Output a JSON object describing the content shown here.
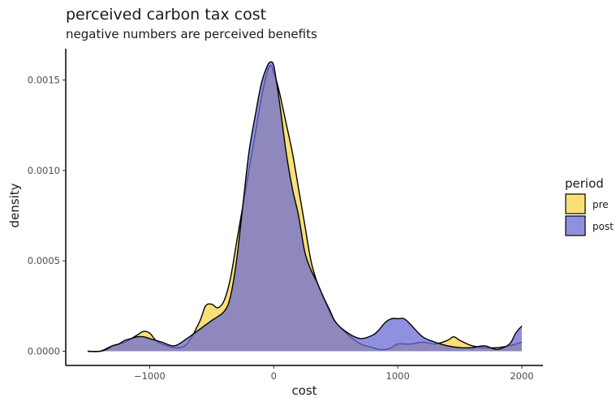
{
  "chart_data": {
    "type": "area",
    "title": "perceived carbon tax cost",
    "subtitle": "negative numbers are perceived benefits",
    "xlabel": "cost",
    "ylabel": "density",
    "xlim": [
      -1500,
      2000
    ],
    "ylim": [
      0,
      0.0016
    ],
    "x_ticks": [
      -1000,
      0,
      1000,
      2000
    ],
    "x_tick_labels": [
      "-1000",
      "0",
      "1000",
      "2000"
    ],
    "y_ticks": [
      0,
      0.0005,
      0.001,
      0.0015
    ],
    "y_tick_labels": [
      "0.0000",
      "0.0005",
      "0.0010",
      "0.0015"
    ],
    "grid": false,
    "legend": {
      "title": "period",
      "position": "right"
    },
    "series": [
      {
        "name": "pre",
        "color": "#f7d548",
        "x": [
          -1500,
          -1400,
          -1300,
          -1200,
          -1100,
          -1050,
          -1000,
          -950,
          -900,
          -800,
          -700,
          -600,
          -550,
          -500,
          -450,
          -400,
          -350,
          -300,
          -250,
          -200,
          -150,
          -100,
          -50,
          -20,
          0,
          20,
          50,
          100,
          150,
          200,
          250,
          300,
          350,
          400,
          450,
          500,
          600,
          700,
          800,
          850,
          900,
          950,
          1000,
          1100,
          1200,
          1300,
          1400,
          1450,
          1500,
          1600,
          1700,
          1800,
          1900,
          2000
        ],
        "y": [
          0,
          0.0,
          3e-05,
          5e-05,
          9e-05,
          0.00011,
          0.0001,
          6e-05,
          4e-05,
          2e-05,
          4e-05,
          0.00016,
          0.00025,
          0.00026,
          0.00024,
          0.00028,
          0.0004,
          0.0006,
          0.0008,
          0.001,
          0.0012,
          0.0014,
          0.00155,
          0.00158,
          0.00154,
          0.0015,
          0.00142,
          0.00126,
          0.0011,
          0.0009,
          0.0007,
          0.0005,
          0.00038,
          0.0003,
          0.00022,
          0.00016,
          9e-05,
          4e-05,
          2e-05,
          1e-05,
          1e-05,
          2e-05,
          4e-05,
          4e-05,
          5e-05,
          4e-05,
          6e-05,
          8e-05,
          6e-05,
          3e-05,
          2e-05,
          2e-05,
          3e-05,
          5e-05
        ]
      },
      {
        "name": "post",
        "color": "#6b6bd6",
        "x": [
          -1500,
          -1400,
          -1350,
          -1300,
          -1250,
          -1200,
          -1150,
          -1100,
          -1050,
          -1000,
          -950,
          -900,
          -800,
          -700,
          -600,
          -500,
          -400,
          -350,
          -300,
          -250,
          -200,
          -150,
          -100,
          -50,
          -20,
          0,
          20,
          50,
          100,
          150,
          200,
          250,
          300,
          350,
          400,
          450,
          500,
          600,
          700,
          800,
          850,
          900,
          950,
          1000,
          1050,
          1100,
          1200,
          1300,
          1400,
          1500,
          1600,
          1700,
          1800,
          1900,
          1950,
          2000
        ],
        "y": [
          0,
          0.0,
          1e-05,
          3e-05,
          4e-05,
          6e-05,
          7e-05,
          8e-05,
          8e-05,
          7e-05,
          6e-05,
          5e-05,
          3e-05,
          7e-05,
          0.00012,
          0.00017,
          0.00022,
          0.0003,
          0.0005,
          0.0008,
          0.0011,
          0.0013,
          0.00148,
          0.00158,
          0.0016,
          0.00158,
          0.0015,
          0.00136,
          0.0011,
          0.0009,
          0.00075,
          0.00055,
          0.00045,
          0.00038,
          0.0003,
          0.00023,
          0.00016,
          0.0001,
          7e-05,
          9e-05,
          0.00012,
          0.00016,
          0.00018,
          0.00018,
          0.00018,
          0.00015,
          8e-05,
          5e-05,
          3e-05,
          2e-05,
          2e-05,
          3e-05,
          1e-05,
          4e-05,
          0.0001,
          0.00014
        ]
      }
    ]
  }
}
